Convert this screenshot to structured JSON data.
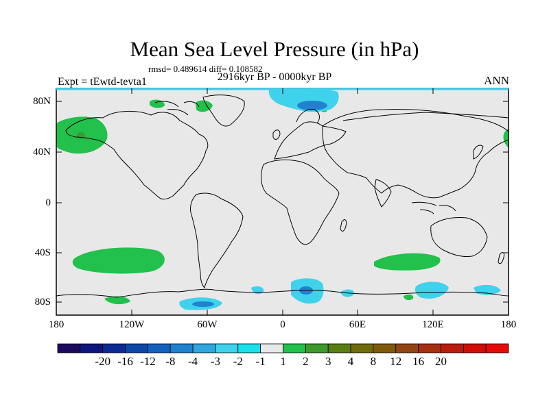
{
  "title": "Mean Sea Level Pressure (in hPa)",
  "stats": "rmsd= 0.489614 diff= 0.108582",
  "period": "2916kyr BP - 0000kyr BP",
  "experiment": "Expt = tEwtd-tevta1",
  "season": "ANN",
  "y_ticks": [
    "80N",
    "40N",
    "0",
    "40S",
    "80S"
  ],
  "x_ticks": [
    "180",
    "120W",
    "60W",
    "0",
    "60E",
    "120E",
    "180"
  ],
  "colorbar": {
    "colors": [
      "#1b0a5e",
      "#0d167f",
      "#0a2a96",
      "#0d47a8",
      "#1261bd",
      "#1f82cf",
      "#2ea7df",
      "#3fd2ec",
      "#18e0ea",
      "#e8e8e8",
      "#21c14c",
      "#3d9a2b",
      "#5a7d12",
      "#6f6c0c",
      "#7e5a08",
      "#914512",
      "#a5300d",
      "#b91c0c",
      "#cf0e08",
      "#e40b06"
    ],
    "labels": [
      "-20",
      "-16",
      "-12",
      "-8",
      "-4",
      "-3",
      "-2",
      "-1",
      "1",
      "2",
      "3",
      "4",
      "8",
      "12",
      "16",
      "20"
    ]
  },
  "colors": {
    "ocean_background": "#e8e8e8",
    "positive_anomaly": "#21c14c",
    "negative_light": "#3fd2ec",
    "negative_medium": "#1f82cf"
  }
}
